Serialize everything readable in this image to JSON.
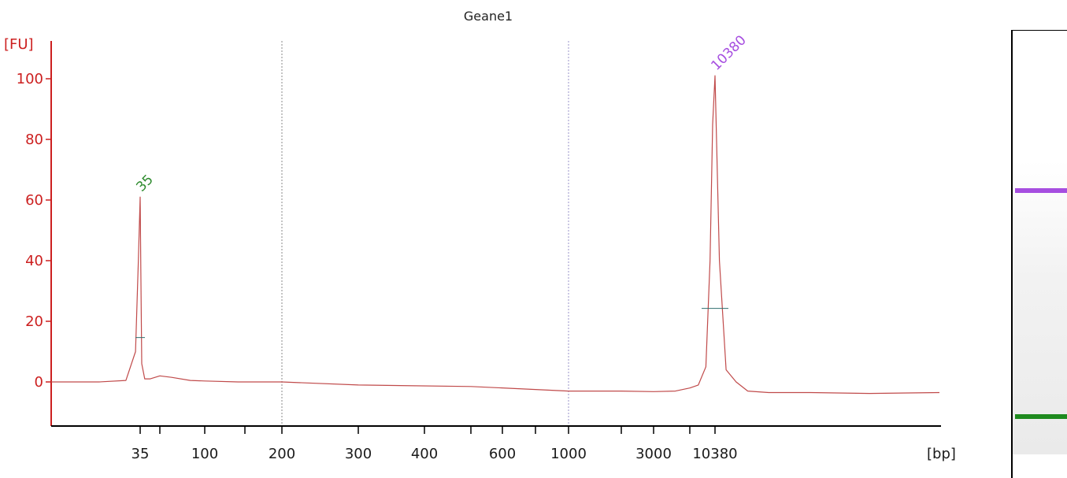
{
  "chart_data": {
    "type": "line",
    "title": "Geane1",
    "y_unit_label": "[FU]",
    "x_unit_label": "[bp]",
    "yticks": [
      0,
      20,
      40,
      60,
      80,
      100
    ],
    "ylim": [
      -14,
      114
    ],
    "x_scale": "ladder (piecewise log-like)",
    "xticks": [
      {
        "value": 35,
        "label": "35"
      },
      {
        "value": 50,
        "label": ""
      },
      {
        "value": 100,
        "label": "100"
      },
      {
        "value": 150,
        "label": ""
      },
      {
        "value": 200,
        "label": "200"
      },
      {
        "value": 300,
        "label": "300"
      },
      {
        "value": 400,
        "label": "400"
      },
      {
        "value": 500,
        "label": ""
      },
      {
        "value": 600,
        "label": "600"
      },
      {
        "value": 700,
        "label": ""
      },
      {
        "value": 1000,
        "label": "1000"
      },
      {
        "value": 2000,
        "label": ""
      },
      {
        "value": 3000,
        "label": "3000"
      },
      {
        "value": 7000,
        "label": ""
      },
      {
        "value": 10380,
        "label": "10380"
      }
    ],
    "series": [
      {
        "x": [
          20,
          27,
          32,
          34,
          34.6,
          35,
          35.4,
          36,
          38,
          42,
          50,
          60,
          80,
          100,
          140,
          200,
          300,
          500,
          700,
          1000,
          2000,
          3000,
          5000,
          7000,
          8000,
          9000,
          9600,
          10000,
          10380,
          10700,
          11200,
          12000,
          13000,
          15000,
          20000,
          30000,
          48500
        ],
        "y": [
          0,
          0,
          0.5,
          10,
          40,
          61,
          38,
          6,
          1,
          1,
          2,
          1.5,
          0.5,
          0.3,
          0,
          0,
          -1,
          -1.5,
          -2.5,
          -3,
          -3,
          -3.2,
          -3,
          -2,
          -1,
          5,
          40,
          85,
          101,
          40,
          4,
          0,
          -3,
          -3.5,
          -3.5,
          -3.8,
          -3.5
        ]
      }
    ],
    "peaks": [
      {
        "x": 35,
        "y": 61,
        "label": "35",
        "color": "#2e8b2e"
      },
      {
        "x": 10380,
        "y": 101,
        "label": "10380",
        "color": "#a64ee0"
      }
    ],
    "reference_lines": [
      200,
      1000
    ],
    "colors": {
      "axis": "#cc1f1f",
      "trace": "#c04a4a",
      "lower_marker": "#2e8b2e",
      "upper_marker": "#a64ee0"
    },
    "gel_bands": [
      {
        "name": "upper-marker-band",
        "color": "#a64ee0"
      },
      {
        "name": "lower-marker-band",
        "color": "#1e8a1e"
      }
    ]
  }
}
